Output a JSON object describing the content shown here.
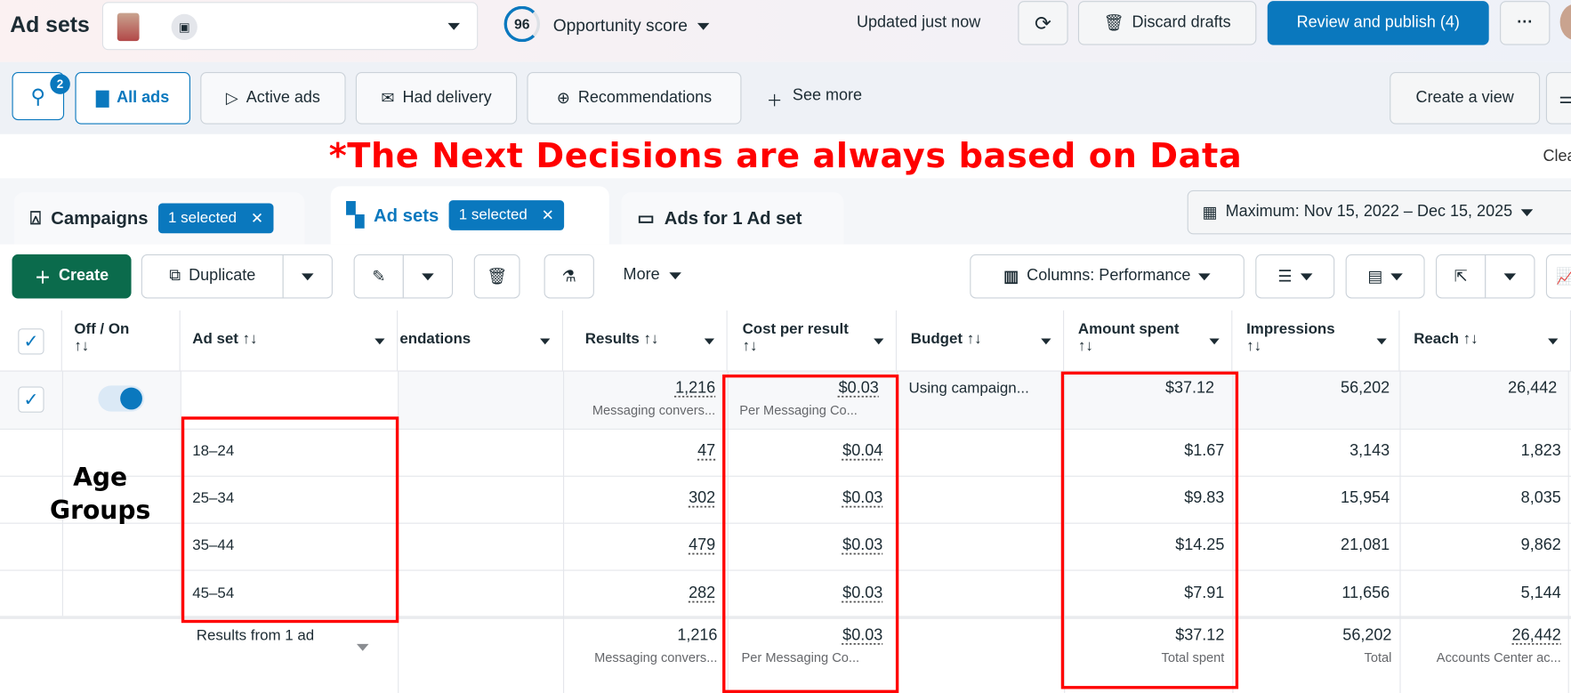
{
  "header": {
    "title": "Ad sets",
    "opportunity_score": "96",
    "opportunity_label": "Opportunity score",
    "updated": "Updated just now",
    "discard_label": "Discard drafts",
    "publish_label": "Review and publish (4)",
    "more_label": "···"
  },
  "filters": {
    "search_badge": "2",
    "items": [
      {
        "label": "All ads",
        "icon": "folder-icon"
      },
      {
        "label": "Active ads",
        "icon": "send-icon"
      },
      {
        "label": "Had delivery",
        "icon": "envelope-icon"
      },
      {
        "label": "Recommendations",
        "icon": "arrow-up-circle-icon"
      }
    ],
    "see_more": "See more",
    "create_view": "Create a view",
    "clear": "Clea"
  },
  "banner": "*The Next Decisions are always based on Data",
  "tabs": [
    {
      "label": "Campaigns",
      "chip": "1 selected"
    },
    {
      "label": "Ad sets",
      "chip": "1 selected"
    },
    {
      "label": "Ads for 1 Ad set"
    }
  ],
  "date_range": "Maximum: Nov 15, 2022 – Dec 15, 2025",
  "toolbar": {
    "create": "Create",
    "duplicate": "Duplicate",
    "more": "More",
    "columns": "Columns: Performance"
  },
  "annotation": "Age Groups",
  "accent": "#0a78be",
  "table": {
    "columns": [
      "Off / On",
      "Ad set",
      "endations",
      "Results",
      "Cost per result",
      "Budget",
      "Amount spent",
      "Impressions",
      "Reach"
    ],
    "sort_glyph": "↑↓",
    "summary": {
      "results": "1,216",
      "results_sub": "Messaging convers...",
      "cost": "$0.03",
      "cost_sub": "Per Messaging Co...",
      "budget": "Using campaign...",
      "spent": "$37.12",
      "impressions": "56,202",
      "reach": "26,442"
    },
    "rows": [
      {
        "adset": "18–24",
        "results": "47",
        "cost": "$0.04",
        "spent": "$1.67",
        "impressions": "3,143",
        "reach": "1,823"
      },
      {
        "adset": "25–34",
        "results": "302",
        "cost": "$0.03",
        "spent": "$9.83",
        "impressions": "15,954",
        "reach": "8,035"
      },
      {
        "adset": "35–44",
        "results": "479",
        "cost": "$0.03",
        "spent": "$14.25",
        "impressions": "21,081",
        "reach": "9,862"
      },
      {
        "adset": "45–54",
        "results": "282",
        "cost": "$0.03",
        "spent": "$7.91",
        "impressions": "11,656",
        "reach": "5,144"
      }
    ],
    "footer": {
      "adset": "Results from 1 ad",
      "results": "1,216",
      "results_sub": "Messaging convers...",
      "cost": "$0.03",
      "cost_sub": "Per Messaging Co...",
      "spent": "$37.12",
      "spent_sub": "Total spent",
      "impressions": "56,202",
      "impressions_sub": "Total",
      "reach": "26,442",
      "reach_sub": "Accounts Center ac..."
    }
  }
}
